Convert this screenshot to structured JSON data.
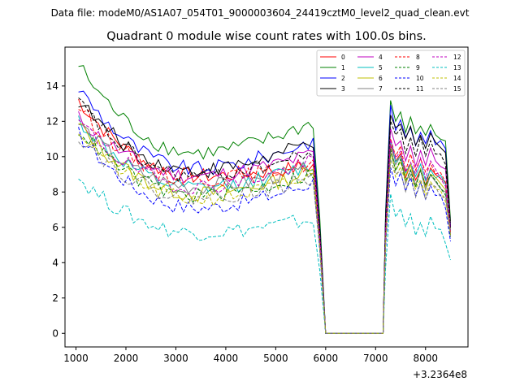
{
  "header": {
    "file_line": "Data file: modeM0/AS1A07_054T01_9000003604_24419cztM0_level2_quad_clean.evt"
  },
  "chart_data": {
    "type": "line",
    "title": "Quadrant 0 module wise count rates with 100.0s bins.",
    "xlabel": "",
    "ylabel": "",
    "x_offset_label": "+3.2364e8",
    "xlim": [
      780,
      8850
    ],
    "ylim": [
      -0.77,
      16.2
    ],
    "x_ticks": [
      1000,
      2000,
      3000,
      4000,
      5000,
      6000,
      7000,
      8000
    ],
    "y_ticks": [
      0,
      2,
      4,
      6,
      8,
      10,
      12,
      14
    ],
    "legend_position": "top-right",
    "legend_columns": 4,
    "gap": {
      "start": 6000,
      "end": 7200
    },
    "end_x": 8500,
    "series": [
      {
        "name": "0",
        "color": "#ff0000",
        "dash": "solid",
        "start": 13.2,
        "plateau": 8.9,
        "end_level": 9.5,
        "seg_end": 9.2,
        "final": 5.8
      },
      {
        "name": "1",
        "color": "#008000",
        "dash": "solid",
        "start": 15.2,
        "plateau": 10.2,
        "end_level": 12.0,
        "seg_end": 11.6,
        "final": 6.4
      },
      {
        "name": "2",
        "color": "#0000ff",
        "dash": "solid",
        "start": 13.9,
        "plateau": 9.3,
        "end_level": 11.0,
        "seg_end": 11.2,
        "final": 6.0
      },
      {
        "name": "3",
        "color": "#000000",
        "dash": "solid",
        "start": 13.2,
        "plateau": 9.2,
        "end_level": 10.9,
        "seg_end": 11.0,
        "final": 6.1
      },
      {
        "name": "4",
        "color": "#bf00bf",
        "dash": "solid",
        "start": 12.2,
        "plateau": 8.9,
        "end_level": 10.2,
        "seg_end": 10.1,
        "final": 5.9
      },
      {
        "name": "5",
        "color": "#00bfbf",
        "dash": "solid",
        "start": 12.1,
        "plateau": 8.2,
        "end_level": 9.6,
        "seg_end": 9.3,
        "final": 5.7
      },
      {
        "name": "6",
        "color": "#bfbf00",
        "dash": "solid",
        "start": 11.8,
        "plateau": 7.9,
        "end_level": 9.2,
        "seg_end": 9.0,
        "final": 5.6
      },
      {
        "name": "7",
        "color": "#808080",
        "dash": "solid",
        "start": 11.9,
        "plateau": 8.3,
        "end_level": 9.4,
        "seg_end": 8.9,
        "final": 5.7
      },
      {
        "name": "8",
        "color": "#ff0000",
        "dash": "dashed",
        "start": 12.9,
        "plateau": 8.7,
        "end_level": 9.7,
        "seg_end": 9.5,
        "final": 5.8
      },
      {
        "name": "9",
        "color": "#008000",
        "dash": "dashed",
        "start": 11.6,
        "plateau": 7.8,
        "end_level": 9.1,
        "seg_end": 8.8,
        "final": 5.6
      },
      {
        "name": "10",
        "color": "#0000ff",
        "dash": "dashed",
        "start": 11.3,
        "plateau": 7.1,
        "end_level": 8.6,
        "seg_end": 8.1,
        "final": 5.3
      },
      {
        "name": "11",
        "color": "#000000",
        "dash": "dashed",
        "start": 13.1,
        "plateau": 8.9,
        "end_level": 10.3,
        "seg_end": 10.6,
        "final": 6.0
      },
      {
        "name": "12",
        "color": "#bf00bf",
        "dash": "dashed",
        "start": 12.0,
        "plateau": 8.3,
        "end_level": 9.8,
        "seg_end": 9.4,
        "final": 5.8
      },
      {
        "name": "13",
        "color": "#00bfbf",
        "dash": "dashed",
        "start": 8.8,
        "plateau": 5.7,
        "end_level": 6.5,
        "seg_end": 6.2,
        "final": 4.1
      },
      {
        "name": "14",
        "color": "#bfbf00",
        "dash": "dashed",
        "start": 11.5,
        "plateau": 7.6,
        "end_level": 8.9,
        "seg_end": 8.6,
        "final": 5.5
      },
      {
        "name": "15",
        "color": "#808080",
        "dash": "dashed",
        "start": 11.2,
        "plateau": 7.7,
        "end_level": 8.8,
        "seg_end": 8.4,
        "final": 5.5
      }
    ]
  }
}
